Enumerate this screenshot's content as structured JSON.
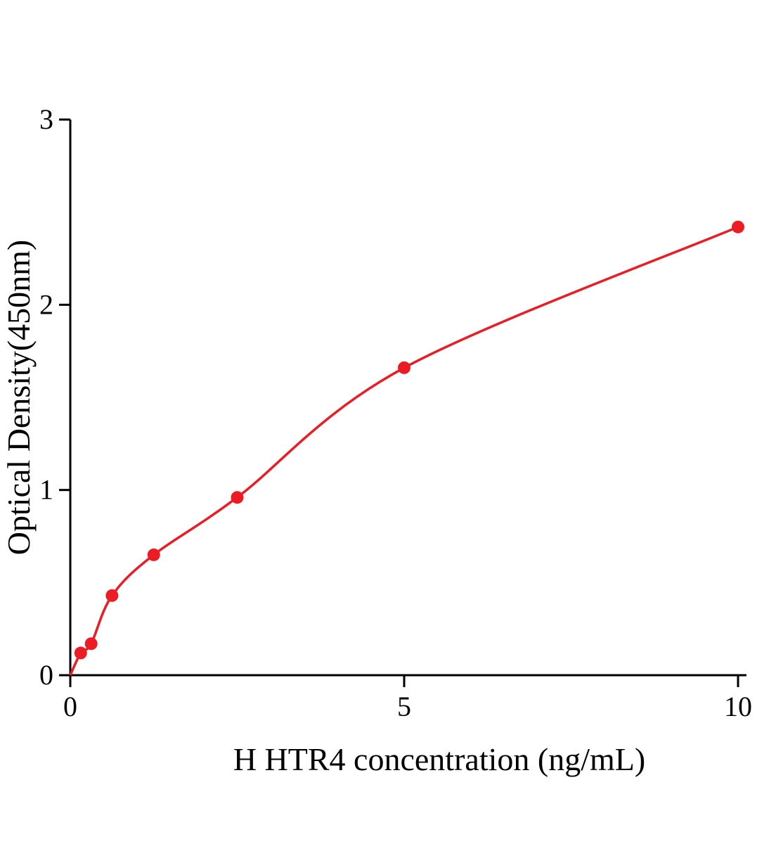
{
  "chart_data": {
    "type": "scatter",
    "title": "",
    "xlabel": "H HTR4 concentration (ng/mL)",
    "ylabel": "Optical Density(450nm)",
    "xlim": [
      0,
      10
    ],
    "ylim": [
      0,
      3
    ],
    "grid": false,
    "legend": false,
    "axis_color": "#000000",
    "series": [
      {
        "name": "H HTR4 standard curve",
        "marker": "circle",
        "marker_radius": 9,
        "color": "#ec1c24",
        "fit_curve": true,
        "curve_start": {
          "x": 0,
          "y": 0
        },
        "points": [
          {
            "x": 0.156,
            "y": 0.12
          },
          {
            "x": 0.3125,
            "y": 0.17
          },
          {
            "x": 0.625,
            "y": 0.43
          },
          {
            "x": 1.25,
            "y": 0.65
          },
          {
            "x": 2.5,
            "y": 0.96
          },
          {
            "x": 5,
            "y": 1.66
          },
          {
            "x": 10,
            "y": 2.42
          }
        ]
      }
    ],
    "x_ticks": [
      {
        "value": 0,
        "label": "0"
      },
      {
        "value": 5,
        "label": "5"
      },
      {
        "value": 10,
        "label": "10"
      }
    ],
    "y_ticks": [
      {
        "value": 0,
        "label": "0"
      },
      {
        "value": 1,
        "label": "1"
      },
      {
        "value": 2,
        "label": "2"
      },
      {
        "value": 3,
        "label": "3"
      }
    ]
  }
}
